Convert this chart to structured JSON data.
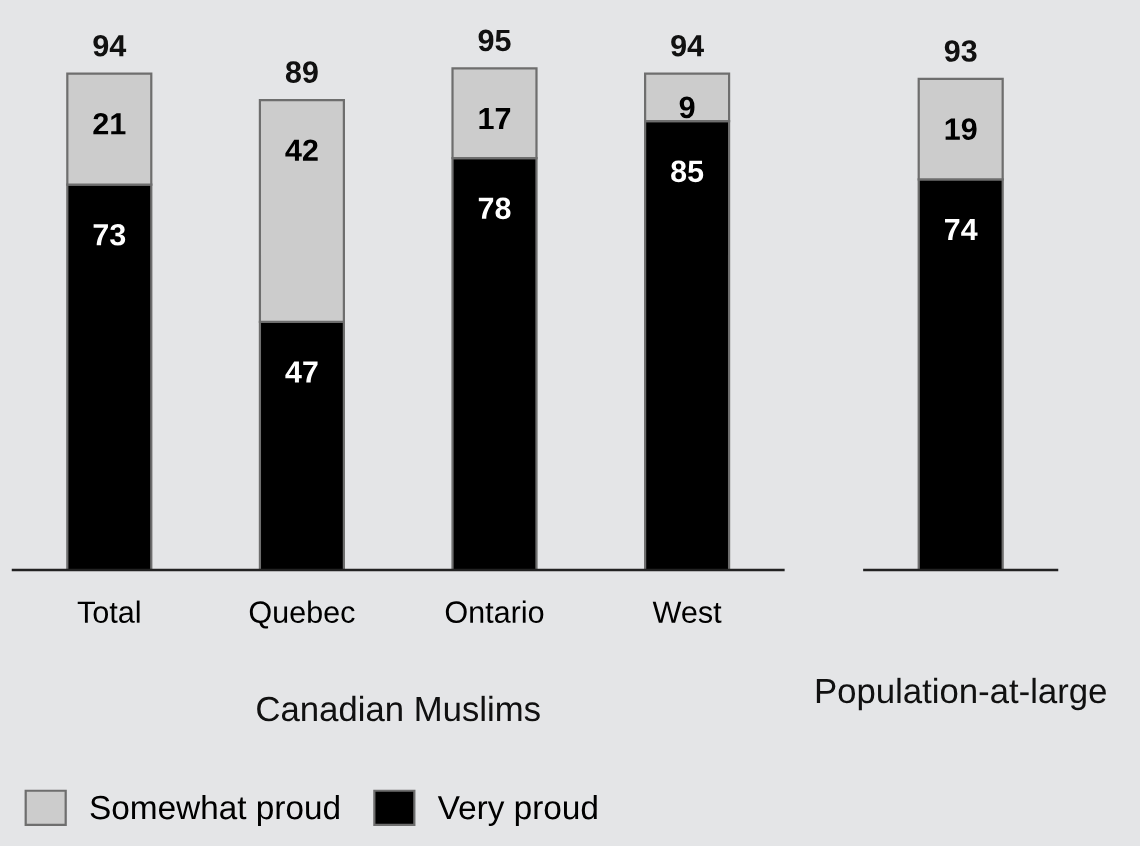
{
  "chart_data": [
    {
      "type": "bar",
      "stacked": true,
      "categories": [
        "Total",
        "Quebec",
        "Ontario",
        "West"
      ],
      "xlabel": "Canadian Muslims",
      "series": [
        {
          "name": "Very proud",
          "color": "#000000",
          "values": [
            73,
            47,
            78,
            85
          ]
        },
        {
          "name": "Somewhat proud",
          "color": "#cccccc",
          "values": [
            21,
            42,
            17,
            9
          ]
        }
      ],
      "data_labels": true,
      "totals": [
        "94",
        "89",
        "95",
        "94"
      ],
      "legend": "bottom",
      "tick_labels": "x"
    },
    {
      "type": "bar",
      "stacked": true,
      "categories": [
        null
      ],
      "xlabel": "Population-at-large",
      "series": [
        {
          "color": "#000000",
          "values": [
            74
          ]
        },
        {
          "color": "#cccccc",
          "values": [
            19
          ]
        }
      ],
      "data_labels": true,
      "totals": [
        "93"
      ],
      "tick_labels": false
    }
  ]
}
